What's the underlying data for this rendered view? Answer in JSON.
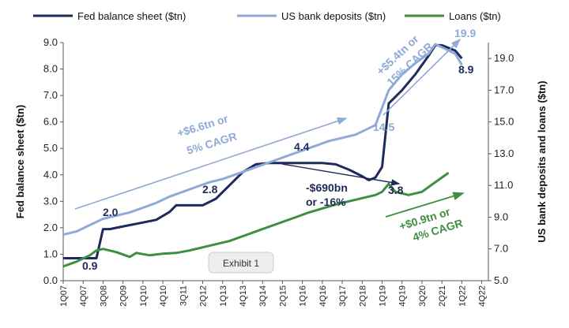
{
  "chart_data": {
    "type": "line",
    "legend": {
      "placement": "top"
    },
    "left_axis": {
      "label": "Fed balance sheet ($tn)",
      "range": [
        0,
        9
      ],
      "ticks": [
        "0.0",
        "1.0",
        "2.0",
        "3.0",
        "4.0",
        "5.0",
        "6.0",
        "7.0",
        "8.0",
        "9.0"
      ]
    },
    "right_axis": {
      "label": "US bank deposits and loans ($tn)",
      "range": [
        5,
        20
      ],
      "ticks": [
        "5.0",
        "7.0",
        "9.0",
        "11.0",
        "13.0",
        "15.0",
        "17.0",
        "19.0"
      ]
    },
    "x_tick_labels": [
      "1Q07",
      "4Q07",
      "3Q08",
      "2Q09",
      "1Q10",
      "4Q10",
      "3Q11",
      "2Q12",
      "1Q13",
      "4Q13",
      "3Q14",
      "2Q15",
      "1Q16",
      "4Q16",
      "3Q17",
      "2Q18",
      "1Q19",
      "4Q19",
      "3Q20",
      "2Q21",
      "1Q22",
      "4Q22"
    ],
    "series": [
      {
        "name": "Fed balance sheet ($tn)",
        "axis": "left",
        "color": "#1f2a5c",
        "points": [
          [
            0,
            0.85
          ],
          [
            5,
            0.85
          ],
          [
            6,
            1.95
          ],
          [
            7,
            1.95
          ],
          [
            8,
            2.0
          ],
          [
            10,
            2.1
          ],
          [
            12,
            2.2
          ],
          [
            14,
            2.3
          ],
          [
            16,
            2.6
          ],
          [
            17,
            2.85
          ],
          [
            19,
            2.85
          ],
          [
            21,
            2.85
          ],
          [
            23,
            3.1
          ],
          [
            25,
            3.6
          ],
          [
            27,
            4.1
          ],
          [
            29,
            4.4
          ],
          [
            31,
            4.45
          ],
          [
            33,
            4.45
          ],
          [
            35,
            4.45
          ],
          [
            37,
            4.45
          ],
          [
            39,
            4.45
          ],
          [
            41,
            4.4
          ],
          [
            43,
            4.2
          ],
          [
            45,
            3.95
          ],
          [
            46,
            3.8
          ],
          [
            47,
            3.9
          ],
          [
            48,
            4.3
          ],
          [
            49,
            6.7
          ],
          [
            51,
            7.2
          ],
          [
            53,
            7.8
          ],
          [
            55,
            8.5
          ],
          [
            56,
            8.9
          ],
          [
            57,
            8.9
          ],
          [
            59,
            8.7
          ],
          [
            60,
            8.4
          ]
        ]
      },
      {
        "name": "US bank deposits ($tn)",
        "axis": "right",
        "color": "#8eaad6",
        "points": [
          [
            0,
            7.9
          ],
          [
            2,
            8.1
          ],
          [
            4,
            8.5
          ],
          [
            6,
            8.9
          ],
          [
            8,
            9.1
          ],
          [
            10,
            9.3
          ],
          [
            12,
            9.6
          ],
          [
            14,
            9.9
          ],
          [
            16,
            10.3
          ],
          [
            18,
            10.6
          ],
          [
            20,
            10.9
          ],
          [
            22,
            11.2
          ],
          [
            24,
            11.4
          ],
          [
            26,
            11.7
          ],
          [
            28,
            12.0
          ],
          [
            30,
            12.3
          ],
          [
            32,
            12.6
          ],
          [
            34,
            12.9
          ],
          [
            36,
            13.2
          ],
          [
            38,
            13.5
          ],
          [
            40,
            13.8
          ],
          [
            42,
            14.0
          ],
          [
            44,
            14.2
          ],
          [
            46,
            14.6
          ],
          [
            47,
            14.8
          ],
          [
            49,
            17.0
          ],
          [
            51,
            18.0
          ],
          [
            53,
            18.7
          ],
          [
            55,
            19.3
          ],
          [
            56,
            19.9
          ],
          [
            57,
            19.7
          ],
          [
            59,
            19.3
          ],
          [
            60,
            18.6
          ]
        ]
      },
      {
        "name": "Loans ($tn)",
        "axis": "right",
        "color": "#3e8e41",
        "points": [
          [
            0,
            5.9
          ],
          [
            2,
            6.2
          ],
          [
            4,
            6.6
          ],
          [
            5,
            6.9
          ],
          [
            6,
            7.0
          ],
          [
            8,
            6.8
          ],
          [
            10,
            6.5
          ],
          [
            11,
            6.75
          ],
          [
            13,
            6.6
          ],
          [
            15,
            6.7
          ],
          [
            17,
            6.75
          ],
          [
            19,
            6.9
          ],
          [
            21,
            7.1
          ],
          [
            23,
            7.3
          ],
          [
            25,
            7.5
          ],
          [
            27,
            7.8
          ],
          [
            29,
            8.1
          ],
          [
            31,
            8.4
          ],
          [
            33,
            8.7
          ],
          [
            35,
            9.0
          ],
          [
            37,
            9.3
          ],
          [
            39,
            9.55
          ],
          [
            41,
            9.8
          ],
          [
            43,
            10.0
          ],
          [
            45,
            10.2
          ],
          [
            47,
            10.4
          ],
          [
            48,
            10.6
          ],
          [
            49,
            11.1
          ],
          [
            50,
            10.6
          ],
          [
            52,
            10.4
          ],
          [
            54,
            10.6
          ],
          [
            55,
            10.9
          ],
          [
            57,
            11.5
          ],
          [
            58,
            11.8
          ]
        ]
      }
    ],
    "annotations": {
      "fed_start": "0.9",
      "fed_2": "2.0",
      "fed_2_8": "2.8",
      "fed_4_4": "4.4",
      "fed_3_8": "3.8",
      "fed_8_9": "8.9",
      "dep_14_5": "14.5",
      "dep_19_9": "19.9",
      "fed_change_1": "-$690bn",
      "fed_change_2": "or -16%",
      "dep_growth_1": "+$6.6tn or",
      "dep_growth_2": "5% CAGR",
      "dep_growth_recent_1": "+$5.4tn or",
      "dep_growth_recent_2": "15% CAGR",
      "loan_growth_1": "+$0.9tn or",
      "loan_growth_2": "4% CAGR"
    },
    "badge": "Exhibit 1"
  }
}
